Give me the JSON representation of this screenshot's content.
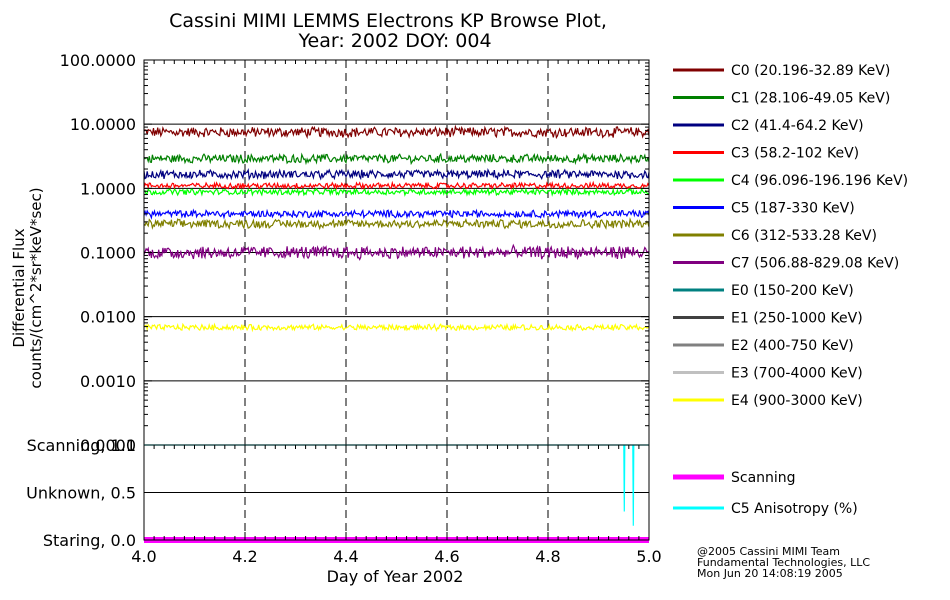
{
  "chart_data": [
    {
      "type": "line",
      "title": "Cassini MIMI LEMMS Electrons KP Browse Plot,",
      "subtitle": "Year: 2002 DOY: 004",
      "ylabel": "Differential Flux",
      "ylabel2": "counts/(cm^2*sr*keV*sec)",
      "yscale": "log",
      "ylim": [
        0.0001,
        100
      ],
      "xlim": [
        4.0,
        5.0
      ],
      "yticks": [
        {
          "value": 100,
          "label": "100.0000"
        },
        {
          "value": 10,
          "label": "10.0000"
        },
        {
          "value": 1,
          "label": "1.0000"
        },
        {
          "value": 0.1,
          "label": "0.1000"
        },
        {
          "value": 0.01,
          "label": "0.0100"
        },
        {
          "value": 0.001,
          "label": "0.0010"
        },
        {
          "value": 0.0001,
          "label": "0.0001"
        }
      ],
      "series": [
        {
          "name": "C0 (20.196-32.89 KeV)",
          "color": "#800000",
          "level": 7.5,
          "noise": 0.07
        },
        {
          "name": "C1 (28.106-49.05 KeV)",
          "color": "#008000",
          "level": 2.9,
          "noise": 0.06
        },
        {
          "name": "C2 (41.4-64.2 KeV)",
          "color": "#000080",
          "level": 1.65,
          "noise": 0.06
        },
        {
          "name": "C3 (58.2-102 KeV)",
          "color": "#ff0000",
          "level": 1.1,
          "noise": 0.04
        },
        {
          "name": "C4 (96.096-196.196 KeV)",
          "color": "#00ff00",
          "level": 0.88,
          "noise": 0.04
        },
        {
          "name": "C5 (187-330 KeV)",
          "color": "#0000ff",
          "level": 0.4,
          "noise": 0.05
        },
        {
          "name": "C6 (312-533.28 KeV)",
          "color": "#808000",
          "level": 0.28,
          "noise": 0.06
        },
        {
          "name": "C7 (506.88-829.08 KeV)",
          "color": "#800080",
          "level": 0.1,
          "noise": 0.09
        },
        {
          "name": "E0 (150-200 KeV)",
          "color": "#008080",
          "level": null,
          "noise": 0
        },
        {
          "name": "E1 (250-1000 KeV)",
          "color": "#404040",
          "level": null,
          "noise": 0
        },
        {
          "name": "E2 (400-750 KeV)",
          "color": "#808080",
          "level": null,
          "noise": 0
        },
        {
          "name": "E3 (700-4000 KeV)",
          "color": "#c0c0c0",
          "level": null,
          "noise": 0
        },
        {
          "name": "E4 (900-3000 KeV)",
          "color": "#ffff00",
          "level": 0.0068,
          "noise": 0.04
        }
      ]
    },
    {
      "type": "line",
      "xlabel": "Day of Year 2002",
      "xlim": [
        4.0,
        5.0
      ],
      "xticks": [
        "4.0",
        "4.2",
        "4.4",
        "4.6",
        "4.8",
        "5.0"
      ],
      "ylim": [
        0,
        1
      ],
      "yticks": [
        {
          "value": 1.0,
          "label": "Scanning, 1.0"
        },
        {
          "value": 0.5,
          "label": "Unknown, 0.5"
        },
        {
          "value": 0.0,
          "label": "Staring, 0.0"
        }
      ],
      "series": [
        {
          "name": "Scanning",
          "color": "#ff00ff",
          "x": [
            4.0,
            5.0
          ],
          "y": [
            0.0,
            0.0
          ]
        },
        {
          "name": "C5 Anisotropy (%)",
          "color": "#00ffff",
          "x": [
            4.0,
            4.95,
            4.951,
            4.952,
            4.953,
            4.968,
            4.969,
            4.97,
            4.971,
            4.972,
            5.0
          ],
          "y": [
            1.0,
            1.0,
            0.3,
            1.0,
            1.0,
            1.0,
            0.15,
            1.0,
            1.0,
            1.0,
            1.0
          ]
        }
      ]
    }
  ],
  "footer": {
    "line1": "@2005 Cassini MIMI Team",
    "line2": "Fundamental Technologies, LLC",
    "line3": "Mon Jun 20 14:08:19 2005"
  }
}
